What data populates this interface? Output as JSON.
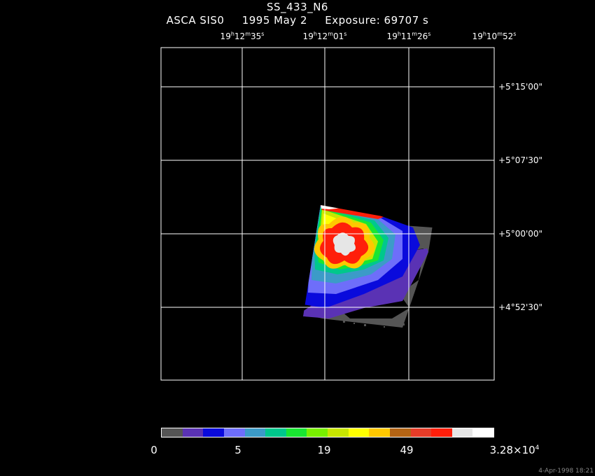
{
  "header": {
    "title": "SS_433_N6",
    "instrument": "ASCA SIS0",
    "date": "1995 May  2",
    "exposure": "Exposure: 69707 s"
  },
  "chart_data": {
    "type": "heatmap",
    "title": "SS_433_N6",
    "subtitle": "ASCA SIS0   1995 May  2    Exposure: 69707 s",
    "x_ticks": [
      {
        "h": "19",
        "m": "12",
        "s": "35"
      },
      {
        "h": "19",
        "m": "12",
        "s": "01"
      },
      {
        "h": "19",
        "m": "11",
        "s": "26"
      },
      {
        "h": "19",
        "m": "10",
        "s": "52"
      }
    ],
    "y_ticks": [
      "+5°15'00\"",
      "+5°07'30\"",
      "+5°00'00\"",
      "+4°52'30\""
    ],
    "grid": true,
    "colorbar": {
      "colors": [
        "#555555",
        "#5a32b4",
        "#0a0adc",
        "#6e6efa",
        "#3c9bc8",
        "#00c88c",
        "#19e632",
        "#78f000",
        "#c8e600",
        "#ffff00",
        "#ffc800",
        "#b46414",
        "#e63c28",
        "#ff1e0a",
        "#e6e6e6",
        "#ffffff"
      ],
      "tick_labels": [
        "0",
        "5",
        "19",
        "49"
      ],
      "max_label": {
        "base": "3.28×10",
        "exp": "4"
      }
    }
  },
  "footer": {
    "timestamp": "4-Apr-1998 18:21"
  }
}
